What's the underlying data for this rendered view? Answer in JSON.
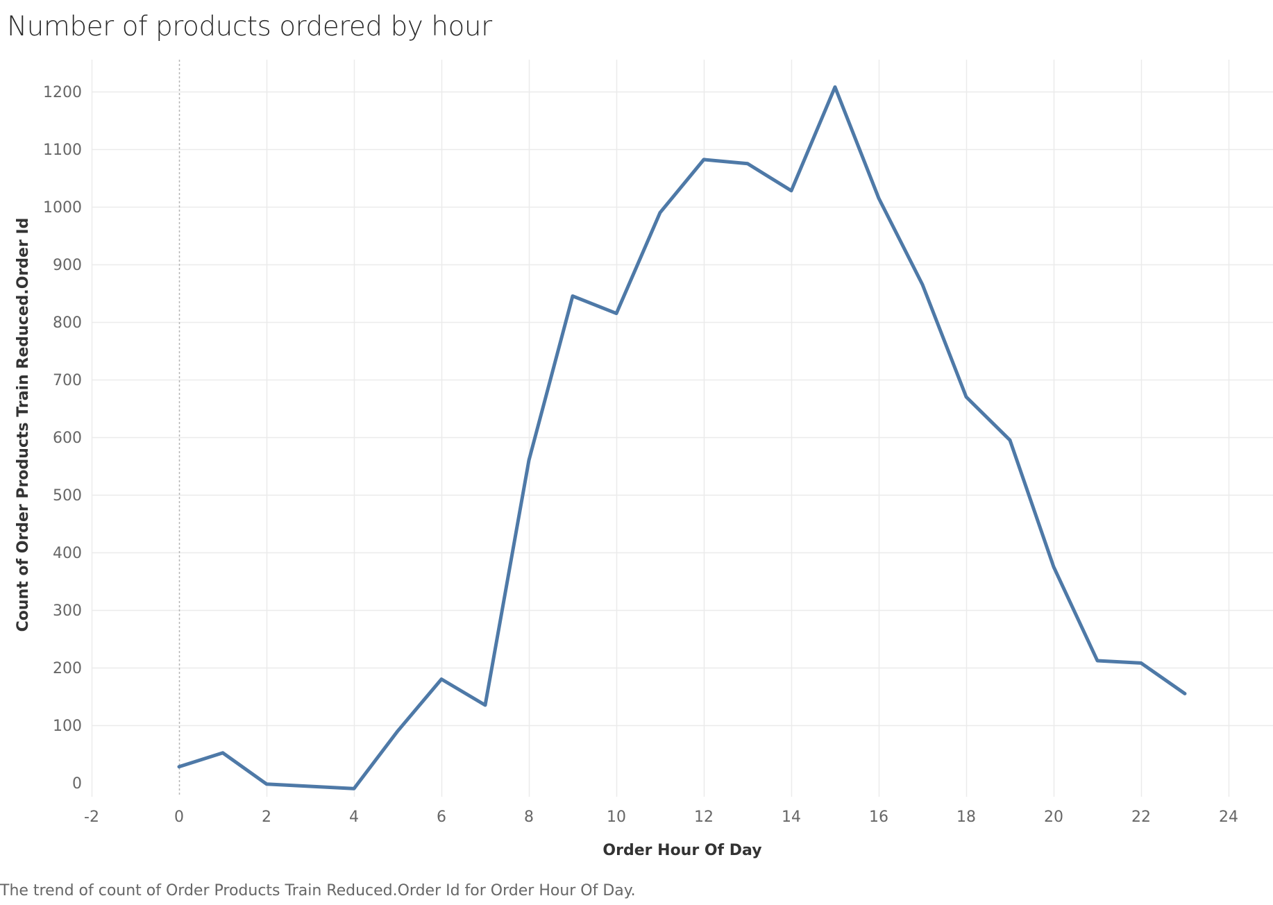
{
  "chart_data": {
    "type": "line",
    "title": "Number of products ordered by hour",
    "xlabel": "Order Hour Of Day",
    "ylabel": "Count of Order Products Train Reduced.Order Id",
    "caption": "The trend of count of Order Products Train Reduced.Order Id for Order Hour Of Day.",
    "xlim": [
      -2,
      24
    ],
    "ylim": [
      0,
      1200
    ],
    "x_ticks": [
      -2,
      0,
      2,
      4,
      6,
      8,
      10,
      12,
      14,
      16,
      18,
      20,
      22,
      24
    ],
    "y_ticks": [
      0,
      100,
      200,
      300,
      400,
      500,
      600,
      700,
      800,
      900,
      1000,
      1100,
      1200
    ],
    "grid": true,
    "reference_line_x": 0,
    "line_color": "#4e79a7",
    "series": [
      {
        "x": [
          0,
          1,
          2,
          4,
          5,
          6,
          7,
          8,
          9,
          10,
          11,
          12,
          13,
          14,
          15,
          16,
          17,
          18,
          19,
          20,
          21,
          22,
          23
        ],
        "values": [
          28,
          52,
          -2,
          -10,
          90,
          180,
          135,
          560,
          845,
          815,
          990,
          1082,
          1075,
          1028,
          1208,
          1015,
          865,
          670,
          595,
          375,
          212,
          208,
          155
        ]
      }
    ]
  }
}
